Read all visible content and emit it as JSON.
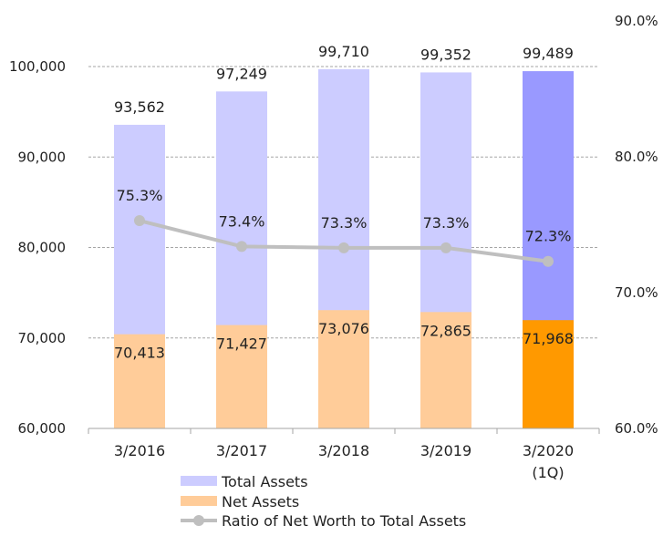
{
  "chart_data": {
    "type": "bar",
    "categories": [
      "3/2016",
      "3/2017",
      "3/2018",
      "3/2019",
      "3/2020"
    ],
    "category_sublabels": [
      "",
      "",
      "",
      "",
      "(1Q)"
    ],
    "series": [
      {
        "name": "Total Assets",
        "type": "bar",
        "axis": "left",
        "values": [
          93562,
          97249,
          99710,
          99352,
          99489
        ],
        "labels": [
          "93,562",
          "97,249",
          "99,710",
          "99,352",
          "99,489"
        ],
        "color": "#ccccff",
        "highlight_color": "#9999ff"
      },
      {
        "name": "Net Assets",
        "type": "bar",
        "axis": "left",
        "values": [
          70413,
          71427,
          73076,
          72865,
          71968
        ],
        "labels": [
          "70,413",
          "71,427",
          "73,076",
          "72,865",
          "71,968"
        ],
        "color": "#ffcc99",
        "highlight_color": "#ff9900"
      },
      {
        "name": "Ratio of Net Worth to Total Assets",
        "type": "line",
        "axis": "right",
        "values": [
          75.3,
          73.4,
          73.3,
          73.3,
          72.3
        ],
        "labels": [
          "75.3%",
          "73.4%",
          "73.3%",
          "73.3%",
          "72.3%"
        ],
        "color": "#bfbfbf"
      }
    ],
    "highlight_index": 4,
    "left_axis": {
      "ylim": [
        60000,
        100000
      ],
      "ticks": [
        60000,
        70000,
        80000,
        90000,
        100000
      ],
      "tick_labels": [
        "60,000",
        "70,000",
        "80,000",
        "90,000",
        "100,000"
      ]
    },
    "right_axis": {
      "ylim": [
        60,
        90
      ],
      "ticks": [
        60,
        70,
        80,
        90
      ],
      "tick_labels": [
        "60.0%",
        "70.0%",
        "80.0%",
        "90.0%"
      ]
    },
    "grid": true,
    "legend_position": "bottom"
  }
}
